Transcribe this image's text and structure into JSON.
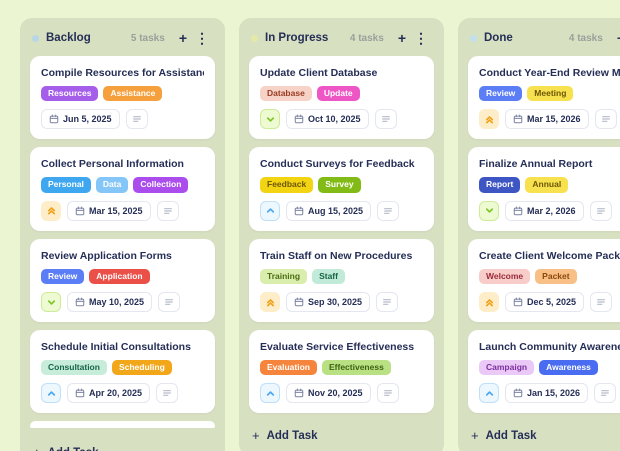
{
  "theme": {
    "page_bg": "#ecf5d2",
    "column_bg": "#d8e0c2",
    "card_bg": "#ffffff",
    "text_primary": "#252e56",
    "text_muted": "#99a09b"
  },
  "icons": {
    "header_add": "+",
    "header_menu": "⋮",
    "add_task_plus": "+"
  },
  "priority_colors": {
    "high": {
      "bg": "#fdeec9",
      "fg": "#f0a11a",
      "border": "#fdeec9"
    },
    "medium": {
      "bg": "#ecf7fe",
      "fg": "#4aa8f0",
      "border": "#bfe0f8"
    },
    "low": {
      "bg": "#eefad2",
      "fg": "#7fc62c",
      "border": "#cdeb9a"
    }
  },
  "board": {
    "columns": [
      {
        "name": "Backlog",
        "dot_color": "#b7d7e8",
        "count_label": "5 tasks",
        "add_task_label": "Add Task",
        "partial_card": true,
        "cards": [
          {
            "title": "Compile Resources for Assistance",
            "tags": [
              {
                "label": "Resources",
                "bg": "#a55eea",
                "fg": "#ffffff"
              },
              {
                "label": "Assistance",
                "bg": "#f5a03c",
                "fg": "#ffffff"
              }
            ],
            "priority": null,
            "due_date": "Jun 5, 2025"
          },
          {
            "title": "Collect Personal Information",
            "tags": [
              {
                "label": "Personal",
                "bg": "#3fa7f0",
                "fg": "#ffffff"
              },
              {
                "label": "Data",
                "bg": "#85c6f8",
                "fg": "#ffffff"
              },
              {
                "label": "Collection",
                "bg": "#ab4ded",
                "fg": "#ffffff"
              }
            ],
            "priority": "high",
            "due_date": "Mar 15, 2025"
          },
          {
            "title": "Review Application Forms",
            "tags": [
              {
                "label": "Review",
                "bg": "#5b7df5",
                "fg": "#ffffff"
              },
              {
                "label": "Application",
                "bg": "#ea4f48",
                "fg": "#ffffff"
              }
            ],
            "priority": "low",
            "due_date": "May 10, 2025"
          },
          {
            "title": "Schedule Initial Consultations",
            "tags": [
              {
                "label": "Consultation",
                "bg": "#c7ecd9",
                "fg": "#156548"
              },
              {
                "label": "Scheduling",
                "bg": "#f2a71b",
                "fg": "#ffffff"
              }
            ],
            "priority": "medium",
            "due_date": "Apr 20, 2025"
          }
        ]
      },
      {
        "name": "In Progress",
        "dot_color": "#e4e9a8",
        "count_label": "4 tasks",
        "add_task_label": "Add Task",
        "partial_card": false,
        "cards": [
          {
            "title": "Update Client Database",
            "tags": [
              {
                "label": "Database",
                "bg": "#f7d2c6",
                "fg": "#9a3b23"
              },
              {
                "label": "Update",
                "bg": "#ee56c6",
                "fg": "#ffffff"
              }
            ],
            "priority": "low",
            "due_date": "Oct 10, 2025"
          },
          {
            "title": "Conduct Surveys for Feedback",
            "tags": [
              {
                "label": "Feedback",
                "bg": "#f2d413",
                "fg": "#6d5605"
              },
              {
                "label": "Survey",
                "bg": "#82bb16",
                "fg": "#ffffff"
              }
            ],
            "priority": "medium",
            "due_date": "Aug 15, 2025"
          },
          {
            "title": "Train Staff on New Procedures",
            "tags": [
              {
                "label": "Training",
                "bg": "#d9edac",
                "fg": "#4a6b11"
              },
              {
                "label": "Staff",
                "bg": "#c2ead8",
                "fg": "#156548"
              }
            ],
            "priority": "high",
            "due_date": "Sep 30, 2025"
          },
          {
            "title": "Evaluate Service Effectiveness",
            "tags": [
              {
                "label": "Evaluation",
                "bg": "#f5853c",
                "fg": "#ffffff"
              },
              {
                "label": "Effectiveness",
                "bg": "#b9e083",
                "fg": "#3f6212"
              }
            ],
            "priority": "medium",
            "due_date": "Nov 20, 2025"
          }
        ]
      },
      {
        "name": "Done",
        "dot_color": "#c0e1ec",
        "count_label": "4 tasks",
        "add_task_label": "Add Task",
        "partial_card": false,
        "cards": [
          {
            "title": "Conduct Year-End Review Meeting",
            "tags": [
              {
                "label": "Review",
                "bg": "#5b7df5",
                "fg": "#ffffff"
              },
              {
                "label": "Meeting",
                "bg": "#f7e14e",
                "fg": "#6d5605"
              }
            ],
            "priority": "high",
            "due_date": "Mar 15, 2026"
          },
          {
            "title": "Finalize Annual Report",
            "tags": [
              {
                "label": "Report",
                "bg": "#3d56c4",
                "fg": "#ffffff"
              },
              {
                "label": "Annual",
                "bg": "#f7e14e",
                "fg": "#6d5605"
              }
            ],
            "priority": "low",
            "due_date": "Mar 2, 2026"
          },
          {
            "title": "Create Client Welcome Packets",
            "tags": [
              {
                "label": "Welcome",
                "bg": "#f8ccc9",
                "fg": "#9a2c3a"
              },
              {
                "label": "Packet",
                "bg": "#f8bf86",
                "fg": "#8a4a0e"
              }
            ],
            "priority": "high",
            "due_date": "Dec 5, 2025"
          },
          {
            "title": "Launch Community Awareness Campaign",
            "tags": [
              {
                "label": "Campaign",
                "bg": "#eac9f6",
                "fg": "#7b2f9e"
              },
              {
                "label": "Awareness",
                "bg": "#4a6cf0",
                "fg": "#ffffff"
              }
            ],
            "priority": "medium",
            "due_date": "Jan 15, 2026"
          }
        ]
      }
    ]
  }
}
